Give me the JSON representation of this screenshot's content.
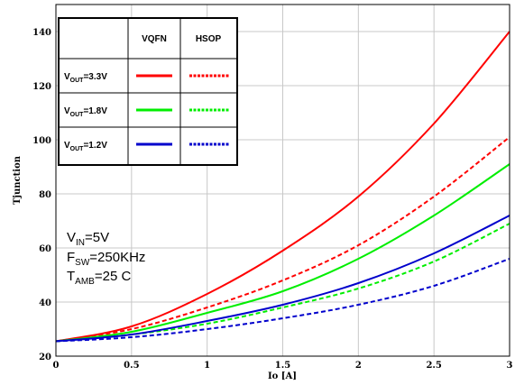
{
  "chart_data": {
    "type": "line",
    "xlabel": "Io [A]",
    "ylabel": "Tjunction",
    "xlim": [
      0,
      3
    ],
    "ylim": [
      20,
      150
    ],
    "x_ticks": [
      "0",
      "0.5",
      "1",
      "1.5",
      "2",
      "2.5",
      "3"
    ],
    "y_ticks": [
      "20",
      "40",
      "60",
      "80",
      "100",
      "120",
      "140"
    ],
    "grid": true,
    "legend": {
      "placement": "top-left",
      "headers": [
        "VQFN",
        "HSOP"
      ],
      "rows": [
        {
          "main": "V",
          "sub": "OUT",
          "rest": "=3.3V",
          "color": "#ff0000"
        },
        {
          "main": "V",
          "sub": "OUT",
          "rest": "=1.8V",
          "color": "#00ee00"
        },
        {
          "main": "V",
          "sub": "OUT",
          "rest": "=1.2V",
          "color": "#0000cc"
        }
      ]
    },
    "annotations": [
      {
        "main": "V",
        "sub": "IN",
        "rest": "=5V"
      },
      {
        "main": "F",
        "sub": "SW",
        "rest": "=250KHz"
      },
      {
        "main": "T",
        "sub": "AMB",
        "rest": "=25 C"
      }
    ],
    "series": [
      {
        "package": "VQFN",
        "vout": "3.3V",
        "color": "#ff0000",
        "dash": false,
        "x": [
          0,
          0.5,
          1,
          1.5,
          2,
          2.5,
          3
        ],
        "y": [
          25.5,
          31,
          43,
          59,
          79,
          106,
          140
        ]
      },
      {
        "package": "HSOP",
        "vout": "3.3V",
        "color": "#ff0000",
        "dash": true,
        "x": [
          0,
          0.5,
          1,
          1.5,
          2,
          2.5,
          3
        ],
        "y": [
          25.5,
          30,
          38,
          48,
          61,
          79,
          101
        ]
      },
      {
        "package": "VQFN",
        "vout": "1.8V",
        "color": "#00ee00",
        "dash": false,
        "x": [
          0,
          0.5,
          1,
          1.5,
          2,
          2.5,
          3
        ],
        "y": [
          25.5,
          29,
          36,
          44,
          56,
          72,
          91
        ]
      },
      {
        "package": "HSOP",
        "vout": "1.8V",
        "color": "#00ee00",
        "dash": true,
        "x": [
          0,
          0.5,
          1,
          1.5,
          2,
          2.5,
          3
        ],
        "y": [
          25.5,
          28,
          32,
          38,
          45,
          55,
          69
        ]
      },
      {
        "package": "VQFN",
        "vout": "1.2V",
        "color": "#0000cc",
        "dash": false,
        "x": [
          0,
          0.5,
          1,
          1.5,
          2,
          2.5,
          3
        ],
        "y": [
          25.5,
          28,
          33,
          39,
          47,
          58,
          72
        ]
      },
      {
        "package": "HSOP",
        "vout": "1.2V",
        "color": "#0000cc",
        "dash": true,
        "x": [
          0,
          0.5,
          1,
          1.5,
          2,
          2.5,
          3
        ],
        "y": [
          25.5,
          27,
          30,
          34,
          39,
          46,
          56
        ]
      }
    ]
  }
}
